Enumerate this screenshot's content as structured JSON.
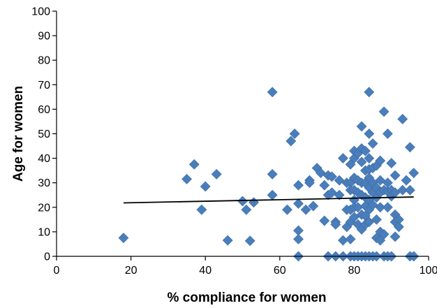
{
  "chart_data": {
    "type": "scatter",
    "title": "",
    "xlabel": "% compliance for women",
    "ylabel": "Age for women",
    "xlim": [
      0,
      100
    ],
    "ylim": [
      0,
      100
    ],
    "xticks": [
      0,
      20,
      40,
      60,
      80,
      100
    ],
    "yticks": [
      0,
      10,
      20,
      30,
      40,
      50,
      60,
      70,
      80,
      90,
      100
    ],
    "xtick_labels": [
      "0",
      "20",
      "40",
      "60",
      "80",
      "100"
    ],
    "ytick_labels": [
      "0",
      "10",
      "20",
      "30",
      "40",
      "50",
      "60",
      "70",
      "80",
      "90",
      "100"
    ],
    "grid": false,
    "legend": "none",
    "marker_color": "#4a7ebb",
    "trendline": {
      "type": "linear",
      "x": [
        18,
        96
      ],
      "y": [
        21.8,
        24.2
      ],
      "color": "#000000"
    },
    "series": [
      {
        "points": [
          [
            18,
            7.5
          ],
          [
            35,
            31.5
          ],
          [
            37,
            37.5
          ],
          [
            39,
            19
          ],
          [
            40,
            28.5
          ],
          [
            43,
            33.5
          ],
          [
            46,
            6.5
          ],
          [
            50,
            22.5
          ],
          [
            51,
            19
          ],
          [
            52,
            6.3
          ],
          [
            53,
            22
          ],
          [
            58,
            67
          ],
          [
            58,
            33.5
          ],
          [
            58,
            25
          ],
          [
            62,
            19
          ],
          [
            63,
            47
          ],
          [
            64,
            50
          ],
          [
            65,
            29
          ],
          [
            65,
            21.5
          ],
          [
            65,
            10.5
          ],
          [
            65,
            7
          ],
          [
            65,
            0
          ],
          [
            67,
            19
          ],
          [
            68,
            31
          ],
          [
            68,
            30
          ],
          [
            69,
            20.5
          ],
          [
            70,
            36
          ],
          [
            71,
            34
          ],
          [
            72,
            29
          ],
          [
            72,
            14.5
          ],
          [
            73,
            33
          ],
          [
            73,
            25
          ],
          [
            73,
            0
          ],
          [
            74,
            32.5
          ],
          [
            74,
            26
          ],
          [
            75,
            14
          ],
          [
            75,
            13
          ],
          [
            75,
            0
          ],
          [
            76,
            31
          ],
          [
            76,
            25
          ],
          [
            77,
            40
          ],
          [
            77,
            6.5
          ],
          [
            77,
            0
          ],
          [
            78,
            30
          ],
          [
            78,
            19
          ],
          [
            78,
            12
          ],
          [
            79,
            37.5
          ],
          [
            79,
            30
          ],
          [
            79,
            27
          ],
          [
            79,
            19
          ],
          [
            79,
            14
          ],
          [
            79,
            7
          ],
          [
            79,
            0
          ],
          [
            80,
            43
          ],
          [
            80,
            40
          ],
          [
            80,
            32
          ],
          [
            80,
            27
          ],
          [
            80,
            23
          ],
          [
            80,
            20
          ],
          [
            80,
            16
          ],
          [
            80,
            0
          ],
          [
            81,
            42
          ],
          [
            81,
            31
          ],
          [
            81,
            26
          ],
          [
            81,
            20
          ],
          [
            81,
            13
          ],
          [
            81,
            0
          ],
          [
            82,
            53
          ],
          [
            82,
            44
          ],
          [
            82,
            38.5
          ],
          [
            82,
            30
          ],
          [
            82,
            25
          ],
          [
            82,
            17
          ],
          [
            82,
            11
          ],
          [
            82,
            0
          ],
          [
            83,
            43
          ],
          [
            83,
            35
          ],
          [
            83,
            30
          ],
          [
            83,
            24
          ],
          [
            83,
            20.5
          ],
          [
            83,
            16.5
          ],
          [
            83,
            13
          ],
          [
            83,
            0
          ],
          [
            84,
            67
          ],
          [
            84,
            50
          ],
          [
            84,
            40
          ],
          [
            84,
            35.5
          ],
          [
            84,
            32
          ],
          [
            84,
            28
          ],
          [
            84,
            23
          ],
          [
            84,
            19
          ],
          [
            84,
            14
          ],
          [
            84,
            0
          ],
          [
            85,
            46
          ],
          [
            85,
            36
          ],
          [
            85,
            30
          ],
          [
            85,
            26
          ],
          [
            85,
            21
          ],
          [
            85,
            0
          ],
          [
            86,
            37
          ],
          [
            86,
            28
          ],
          [
            86,
            24
          ],
          [
            86,
            15
          ],
          [
            86,
            7.5
          ],
          [
            86,
            0
          ],
          [
            87,
            39
          ],
          [
            87,
            31
          ],
          [
            87,
            26
          ],
          [
            87,
            20
          ],
          [
            87,
            10
          ],
          [
            87,
            6.5
          ],
          [
            88,
            59
          ],
          [
            88,
            27
          ],
          [
            88,
            9
          ],
          [
            88,
            0
          ],
          [
            89,
            50
          ],
          [
            89,
            30
          ],
          [
            89,
            26.5
          ],
          [
            89,
            20
          ],
          [
            89,
            0
          ],
          [
            90,
            38
          ],
          [
            90,
            27
          ],
          [
            90,
            24.5
          ],
          [
            90,
            0
          ],
          [
            91,
            33
          ],
          [
            91,
            26
          ],
          [
            91,
            17
          ],
          [
            91,
            14
          ],
          [
            91,
            8
          ],
          [
            92,
            15
          ],
          [
            92,
            12
          ],
          [
            93,
            56
          ],
          [
            93,
            27
          ],
          [
            94,
            31
          ],
          [
            95,
            44.5
          ],
          [
            95,
            27
          ],
          [
            95,
            0
          ],
          [
            96,
            34
          ],
          [
            96,
            0
          ]
        ]
      }
    ]
  }
}
